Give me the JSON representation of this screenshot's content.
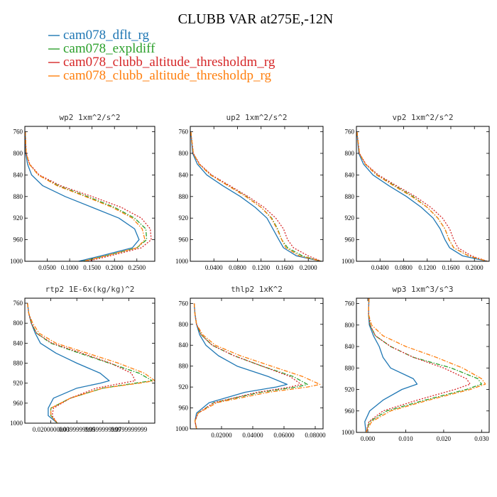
{
  "figure": {
    "title": "CLUBB VAR at275E,-12N"
  },
  "chart_data": {
    "type": "line",
    "title": "CLUBB VAR at275E,-12N",
    "legend": {
      "placement": "top-left",
      "entries": [
        {
          "name": "cam078_dflt_rg",
          "color": "#1f77b4",
          "style": "solid"
        },
        {
          "name": "cam078_expldiff",
          "color": "#2ca02c",
          "style": "dashdot"
        },
        {
          "name": "cam078_clubb_altitude_thresholdm_rg",
          "color": "#d62728",
          "style": "dotted"
        },
        {
          "name": "cam078_clubb_altitude_thresholdp_rg",
          "color": "#ff7f0e",
          "style": "dashdot"
        }
      ]
    },
    "panels": [
      {
        "title": "wp2  1xm^2/s^2",
        "ylim": [
          1000,
          750
        ],
        "yticks": [
          "760",
          "800",
          "840",
          "880",
          "920",
          "960",
          "1000"
        ],
        "ytick_values": [
          760,
          800,
          840,
          880,
          920,
          960,
          1000
        ],
        "xlim": [
          0,
          0.29
        ],
        "xticks": [
          "0.0500",
          "0.1000",
          "0.1500",
          "0.2000",
          "0.2500"
        ],
        "xtick_values": [
          0.05,
          0.1,
          0.15,
          0.2,
          0.25
        ],
        "y": [
          760,
          800,
          820,
          840,
          860,
          880,
          900,
          920,
          940,
          960,
          975,
          990,
          1000
        ],
        "series": [
          {
            "name": "cam078_dflt_rg",
            "values": [
              0.001,
              0.002,
              0.006,
              0.015,
              0.04,
              0.09,
              0.15,
              0.21,
              0.245,
              0.255,
              0.24,
              0.17,
              0.12
            ]
          },
          {
            "name": "cam078_expldiff",
            "values": [
              0.001,
              0.003,
              0.01,
              0.03,
              0.075,
              0.14,
              0.2,
              0.245,
              0.27,
              0.272,
              0.25,
              0.18,
              0.13
            ]
          },
          {
            "name": "cam078_clubb_altitude_thresholdm_rg",
            "values": [
              0.001,
              0.003,
              0.011,
              0.032,
              0.08,
              0.15,
              0.215,
              0.26,
              0.28,
              0.282,
              0.26,
              0.19,
              0.14
            ]
          },
          {
            "name": "cam078_clubb_altitude_thresholdp_rg",
            "values": [
              0.001,
              0.003,
              0.01,
              0.03,
              0.072,
              0.135,
              0.195,
              0.24,
              0.262,
              0.268,
              0.25,
              0.18,
              0.13
            ]
          }
        ]
      },
      {
        "title": "up2  1xm^2/s^2",
        "ylim": [
          1000,
          750
        ],
        "yticks": [
          "760",
          "800",
          "840",
          "880",
          "920",
          "960",
          "1000"
        ],
        "ytick_values": [
          760,
          800,
          840,
          880,
          920,
          960,
          1000
        ],
        "xlim": [
          0,
          0.225
        ],
        "xticks": [
          "0.0400",
          "0.0800",
          "0.1200",
          "0.1600",
          "0.2000"
        ],
        "xtick_values": [
          0.04,
          0.08,
          0.12,
          0.16,
          0.2
        ],
        "y": [
          760,
          800,
          820,
          840,
          860,
          880,
          900,
          920,
          940,
          960,
          975,
          990,
          1000
        ],
        "series": [
          {
            "name": "cam078_dflt_rg",
            "values": [
              0.001,
              0.004,
              0.012,
              0.028,
              0.055,
              0.085,
              0.11,
              0.13,
              0.14,
              0.15,
              0.158,
              0.18,
              0.222
            ]
          },
          {
            "name": "cam078_expldiff",
            "values": [
              0.001,
              0.005,
              0.015,
              0.035,
              0.065,
              0.095,
              0.12,
              0.138,
              0.148,
              0.155,
              0.165,
              0.19,
              0.222
            ]
          },
          {
            "name": "cam078_clubb_altitude_thresholdm_rg",
            "values": [
              0.001,
              0.005,
              0.016,
              0.036,
              0.067,
              0.098,
              0.125,
              0.145,
              0.158,
              0.165,
              0.175,
              0.2,
              0.222
            ]
          },
          {
            "name": "cam078_clubb_altitude_thresholdp_rg",
            "values": [
              0.001,
              0.005,
              0.015,
              0.034,
              0.064,
              0.094,
              0.12,
              0.137,
              0.147,
              0.155,
              0.162,
              0.185,
              0.222
            ]
          }
        ]
      },
      {
        "title": "vp2  1xm^2/s^2",
        "ylim": [
          1000,
          750
        ],
        "yticks": [
          "760",
          "800",
          "840",
          "880",
          "920",
          "960",
          "1000"
        ],
        "ytick_values": [
          760,
          800,
          840,
          880,
          920,
          960,
          1000
        ],
        "xlim": [
          0,
          0.225
        ],
        "xticks": [
          "0.0400",
          "0.0800",
          "0.1200",
          "0.1600",
          "0.2000"
        ],
        "xtick_values": [
          0.04,
          0.08,
          0.12,
          0.16,
          0.2
        ],
        "y": [
          760,
          800,
          820,
          840,
          860,
          880,
          900,
          920,
          940,
          960,
          975,
          990,
          1000
        ],
        "series": [
          {
            "name": "cam078_dflt_rg",
            "values": [
              0.001,
              0.004,
              0.012,
              0.028,
              0.055,
              0.085,
              0.11,
              0.13,
              0.142,
              0.15,
              0.158,
              0.18,
              0.222
            ]
          },
          {
            "name": "cam078_expldiff",
            "values": [
              0.001,
              0.005,
              0.015,
              0.035,
              0.065,
              0.096,
              0.12,
              0.138,
              0.15,
              0.157,
              0.165,
              0.19,
              0.222
            ]
          },
          {
            "name": "cam078_clubb_altitude_thresholdm_rg",
            "values": [
              0.001,
              0.005,
              0.016,
              0.037,
              0.068,
              0.1,
              0.126,
              0.146,
              0.158,
              0.165,
              0.172,
              0.195,
              0.222
            ]
          },
          {
            "name": "cam078_clubb_altitude_thresholdp_rg",
            "values": [
              0.001,
              0.005,
              0.015,
              0.034,
              0.063,
              0.094,
              0.12,
              0.138,
              0.15,
              0.157,
              0.165,
              0.19,
              0.222
            ]
          }
        ]
      },
      {
        "title": "rtp2  1E-6x(kg/kg)^2",
        "ylim": [
          1000,
          750
        ],
        "yticks": [
          "760",
          "800",
          "840",
          "880",
          "920",
          "960",
          "1000"
        ],
        "ytick_values": [
          760,
          800,
          840,
          880,
          920,
          960,
          1000
        ],
        "xlim": [
          0,
          0.1
        ],
        "xticks": [
          "0.0200000000",
          "0.0399999999",
          "0.0599999999",
          "0.0799999999"
        ],
        "xtick_values": [
          0.02,
          0.04,
          0.06,
          0.08
        ],
        "y": [
          760,
          780,
          800,
          820,
          840,
          860,
          880,
          900,
          915,
          920,
          930,
          950,
          970,
          985,
          1000
        ],
        "series": [
          {
            "name": "cam078_dflt_rg",
            "values": [
              0.002,
              0.003,
              0.005,
              0.008,
              0.012,
              0.024,
              0.04,
              0.058,
              0.065,
              0.058,
              0.04,
              0.022,
              0.018,
              0.018,
              0.025
            ]
          },
          {
            "name": "cam078_expldiff",
            "values": [
              0.002,
              0.003,
              0.005,
              0.009,
              0.02,
              0.042,
              0.065,
              0.088,
              0.098,
              0.085,
              0.06,
              0.035,
              0.02,
              0.02,
              0.025
            ]
          },
          {
            "name": "cam078_clubb_altitude_thresholdm_rg",
            "values": [
              0.002,
              0.003,
              0.005,
              0.009,
              0.021,
              0.044,
              0.066,
              0.082,
              0.085,
              0.075,
              0.055,
              0.035,
              0.022,
              0.021,
              0.025
            ]
          },
          {
            "name": "cam078_clubb_altitude_thresholdp_rg",
            "values": [
              0.002,
              0.003,
              0.006,
              0.011,
              0.024,
              0.048,
              0.072,
              0.092,
              0.1,
              0.088,
              0.06,
              0.035,
              0.02,
              0.02,
              0.025
            ]
          }
        ]
      },
      {
        "title": "thlp2  1xK^2",
        "ylim": [
          1000,
          750
        ],
        "yticks": [
          "760",
          "800",
          "840",
          "880",
          "920",
          "960",
          "1000"
        ],
        "ytick_values": [
          760,
          800,
          840,
          880,
          920,
          960,
          1000
        ],
        "xlim": [
          0,
          0.085
        ],
        "xticks": [
          "0.02000",
          "0.04000",
          "0.06000",
          "0.08000"
        ],
        "xtick_values": [
          0.02,
          0.04,
          0.06,
          0.08
        ],
        "y": [
          760,
          780,
          800,
          820,
          840,
          860,
          880,
          900,
          915,
          920,
          930,
          950,
          970,
          985,
          1000
        ],
        "series": [
          {
            "name": "cam078_dflt_rg",
            "values": [
              0.0025,
              0.003,
              0.004,
              0.006,
              0.01,
              0.018,
              0.03,
              0.05,
              0.062,
              0.055,
              0.035,
              0.012,
              0.004,
              0.003,
              0.004
            ]
          },
          {
            "name": "cam078_expldiff",
            "values": [
              0.0025,
              0.003,
              0.004,
              0.007,
              0.014,
              0.028,
              0.046,
              0.066,
              0.075,
              0.068,
              0.045,
              0.015,
              0.005,
              0.003,
              0.004
            ]
          },
          {
            "name": "cam078_clubb_altitude_thresholdm_rg",
            "values": [
              0.0025,
              0.003,
              0.004,
              0.007,
              0.014,
              0.028,
              0.046,
              0.064,
              0.071,
              0.064,
              0.043,
              0.015,
              0.005,
              0.003,
              0.004
            ]
          },
          {
            "name": "cam078_clubb_altitude_thresholdp_rg",
            "values": [
              0.0025,
              0.003,
              0.004,
              0.008,
              0.016,
              0.032,
              0.052,
              0.072,
              0.083,
              0.075,
              0.05,
              0.017,
              0.005,
              0.003,
              0.004
            ]
          }
        ]
      },
      {
        "title": "wp3  1xm^3/s^3",
        "ylim": [
          1000,
          750
        ],
        "yticks": [
          "760",
          "800",
          "840",
          "880",
          "920",
          "960",
          "1000"
        ],
        "ytick_values": [
          760,
          800,
          840,
          880,
          920,
          960,
          1000
        ],
        "xlim": [
          -0.003,
          0.032
        ],
        "xticks": [
          "0.000",
          "0.010",
          "0.020",
          "0.030"
        ],
        "xtick_values": [
          0,
          0.01,
          0.02,
          0.03
        ],
        "y": [
          750,
          780,
          800,
          820,
          840,
          860,
          880,
          900,
          910,
          920,
          940,
          960,
          980,
          1000
        ],
        "series": [
          {
            "name": "cam078_dflt_rg",
            "values": [
              0.0003,
              0.0002,
              0.0004,
              0.0015,
              0.003,
              0.004,
              0.006,
              0.012,
              0.013,
              0.009,
              0.004,
              0.0005,
              -0.0008,
              -0.0005
            ]
          },
          {
            "name": "cam078_expldiff",
            "values": [
              0.0003,
              0.0002,
              0.0006,
              0.002,
              0.006,
              0.012,
              0.022,
              0.029,
              0.03,
              0.026,
              0.015,
              0.005,
              0.0005,
              -0.0005
            ]
          },
          {
            "name": "cam078_clubb_altitude_thresholdm_rg",
            "values": [
              0.0003,
              0.0002,
              0.0006,
              0.002,
              0.006,
              0.012,
              0.02,
              0.026,
              0.027,
              0.023,
              0.013,
              0.004,
              0.0003,
              -0.0005
            ]
          },
          {
            "name": "cam078_clubb_altitude_thresholdp_rg",
            "values": [
              0.0003,
              0.0002,
              0.001,
              0.004,
              0.01,
              0.018,
              0.025,
              0.03,
              0.031,
              0.027,
              0.016,
              0.006,
              0.001,
              -0.0005
            ]
          }
        ]
      }
    ]
  }
}
